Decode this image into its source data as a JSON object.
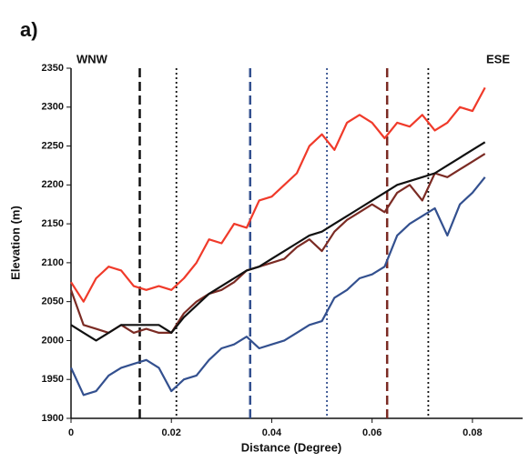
{
  "chart_data": {
    "type": "line",
    "panel_label": "a)",
    "left_label": "WNW",
    "right_label": "ESE",
    "xlabel": "Distance (Degree)",
    "ylabel": "Elevation (m)",
    "x": [
      0,
      0.0025,
      0.005,
      0.0075,
      0.01,
      0.0125,
      0.015,
      0.0175,
      0.02,
      0.0225,
      0.025,
      0.0275,
      0.03,
      0.0325,
      0.035,
      0.0375,
      0.04,
      0.0425,
      0.045,
      0.0475,
      0.05,
      0.0525,
      0.055,
      0.0575,
      0.06,
      0.0625,
      0.065,
      0.0675,
      0.07,
      0.0725,
      0.075,
      0.0775,
      0.08,
      0.0825
    ],
    "series": [
      {
        "color": "#f03a2a",
        "values": [
          2075,
          2050,
          2080,
          2095,
          2090,
          2070,
          2065,
          2070,
          2065,
          2080,
          2100,
          2130,
          2125,
          2150,
          2145,
          2180,
          2185,
          2200,
          2215,
          2250,
          2265,
          2245,
          2280,
          2290,
          2280,
          2260,
          2280,
          2275,
          2290,
          2270,
          2280,
          2300,
          2295,
          2325
        ]
      },
      {
        "color": "#7b2b24",
        "values": [
          2065,
          2020,
          2015,
          2010,
          2020,
          2010,
          2015,
          2010,
          2010,
          2035,
          2050,
          2060,
          2065,
          2075,
          2090,
          2095,
          2100,
          2105,
          2120,
          2130,
          2115,
          2140,
          2155,
          2165,
          2175,
          2165,
          2190,
          2200,
          2180,
          2215,
          2210,
          2220,
          2230,
          2240
        ]
      },
      {
        "color": "#111111",
        "values": [
          2020,
          2010,
          2000,
          2010,
          2020,
          2020,
          2020,
          2020,
          2010,
          2030,
          2045,
          2060,
          2070,
          2080,
          2090,
          2095,
          2105,
          2115,
          2125,
          2135,
          2140,
          2150,
          2160,
          2170,
          2180,
          2190,
          2200,
          2205,
          2210,
          2215,
          2225,
          2235,
          2245,
          2255
        ]
      },
      {
        "color": "#33508f",
        "values": [
          1965,
          1930,
          1935,
          1955,
          1965,
          1970,
          1975,
          1965,
          1935,
          1950,
          1955,
          1975,
          1990,
          1995,
          2005,
          1990,
          1995,
          2000,
          2010,
          2020,
          2025,
          2055,
          2065,
          2080,
          2085,
          2095,
          2135,
          2150,
          2160,
          2170,
          2135,
          2175,
          2190,
          2210
        ]
      }
    ],
    "vlines": [
      {
        "x": 0.0137,
        "color": "#111111",
        "style": "dashed"
      },
      {
        "x": 0.021,
        "color": "#111111",
        "style": "dotted"
      },
      {
        "x": 0.0357,
        "color": "#33508f",
        "style": "dashed"
      },
      {
        "x": 0.051,
        "color": "#33508f",
        "style": "dotted"
      },
      {
        "x": 0.063,
        "color": "#7b2b24",
        "style": "dashed"
      },
      {
        "x": 0.0712,
        "color": "#111111",
        "style": "dotted"
      }
    ],
    "xlim": [
      0,
      0.09
    ],
    "xticks": [
      0,
      0.02,
      0.04,
      0.06,
      0.08
    ],
    "ylim": [
      1900,
      2350
    ],
    "yticks": [
      1900,
      1950,
      2000,
      2050,
      2100,
      2150,
      2200,
      2250,
      2300,
      2350
    ]
  }
}
